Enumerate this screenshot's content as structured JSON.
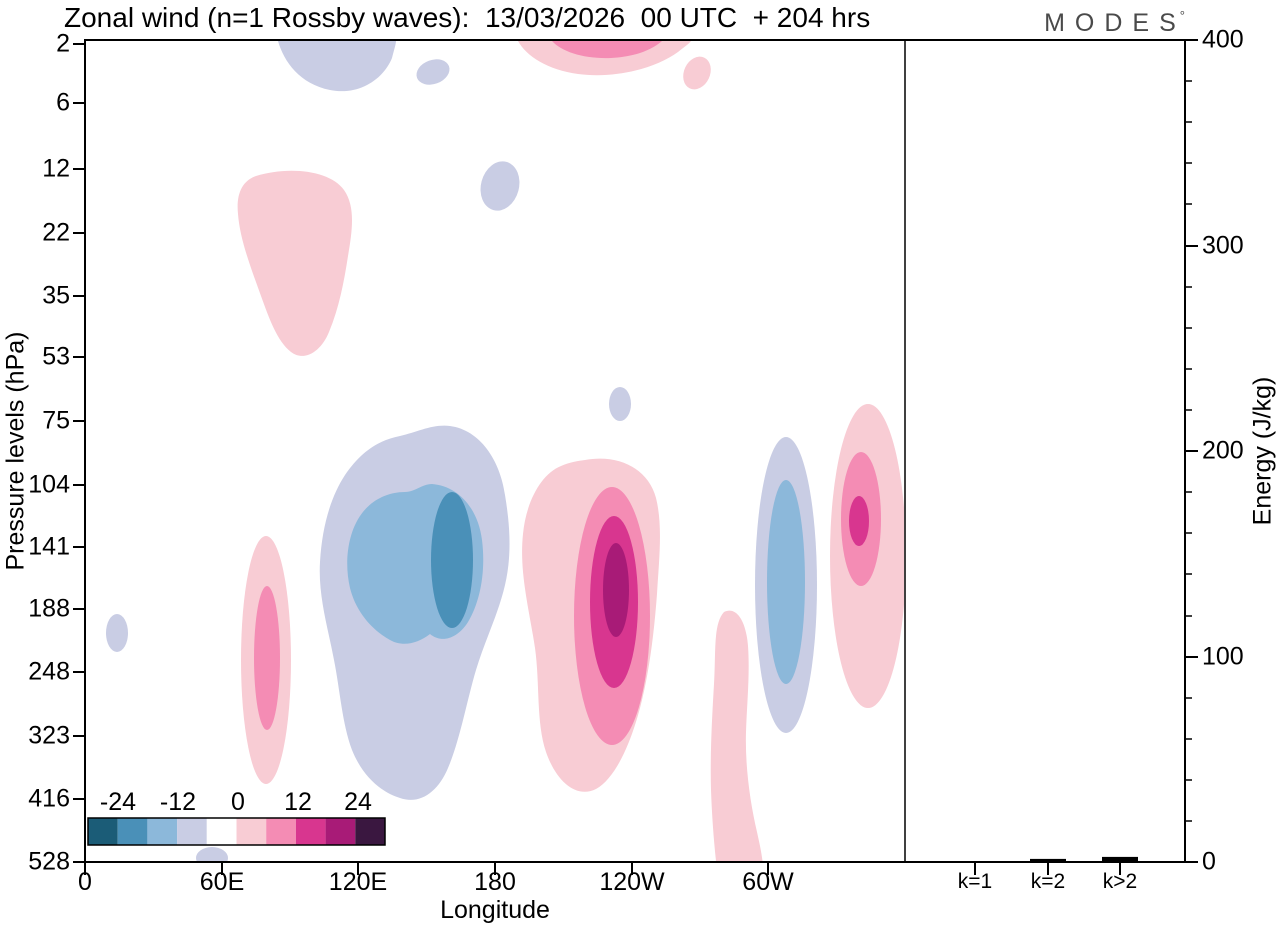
{
  "title": "Zonal wind (n=1 Rossby waves):  13/03/2026  00 UTC  + 204 hrs",
  "brand": {
    "name": "MODES",
    "degree": "°"
  },
  "axes": {
    "pressure": {
      "label": "Pressure levels (hPa)",
      "ticks": [
        "2",
        "6",
        "12",
        "22",
        "35",
        "53",
        "75",
        "104",
        "141",
        "188",
        "248",
        "323",
        "416",
        "528"
      ]
    },
    "longitude": {
      "label": "Longitude",
      "ticks": [
        "0",
        "60E",
        "120E",
        "180",
        "120W",
        "60W"
      ]
    },
    "energy": {
      "label": "Energy (J/kg)",
      "ticks": [
        "400",
        "300",
        "200",
        "100",
        "0"
      ]
    },
    "wavenumber": {
      "ticks": [
        "k=1",
        "k=2",
        "k>2"
      ]
    }
  },
  "colorbar": {
    "tick_labels": [
      "-24",
      "-12",
      "0",
      "12",
      "24"
    ],
    "levels": [
      -30,
      -24,
      -18,
      -12,
      -6,
      0,
      6,
      12,
      18,
      24,
      30
    ],
    "colors": [
      "#1b5c77",
      "#4a90b8",
      "#8cb8da",
      "#c9cde4",
      "#ffffff",
      "#f8ccd4",
      "#f48cb4",
      "#d8368f",
      "#a81b77",
      "#3a1740"
    ]
  },
  "chart_data": [
    {
      "type": "heatmap",
      "subtype": "filled-contour",
      "title": "Zonal wind (n=1 Rossby waves)",
      "valid_time": "13/03/2026 00 UTC",
      "forecast_lead": "+ 204 hrs",
      "xlabel": "Longitude",
      "ylabel": "Pressure levels (hPa)",
      "x_ticks": [
        "0",
        "60E",
        "120E",
        "180",
        "120W",
        "60W"
      ],
      "x_range_deg": [
        0,
        360
      ],
      "y_ticks_hPa": [
        2,
        6,
        12,
        22,
        35,
        53,
        75,
        104,
        141,
        188,
        248,
        323,
        416,
        528
      ],
      "contour_levels": [
        -30,
        -24,
        -18,
        -12,
        -6,
        0,
        6,
        12,
        18,
        24,
        30
      ],
      "features": [
        {
          "sign": "negative",
          "lon": "145E",
          "pressure_hPa": 140,
          "peak_value": -20,
          "extent": "75-400 hPa, 100E-170E, strongest negative cell"
        },
        {
          "sign": "negative",
          "lon": "55W",
          "pressure_hPa": 165,
          "peak_value": -14,
          "extent": "90-320 hPa vertical band"
        },
        {
          "sign": "negative",
          "lon": "95E",
          "pressure_hPa": 2,
          "peak_value": -8,
          "extent": "touching top of domain"
        },
        {
          "sign": "negative",
          "lon": "180",
          "pressure_hPa": 14,
          "peak_value": -8,
          "extent": "small patch"
        },
        {
          "sign": "negative",
          "lon": "167E",
          "pressure_hPa": 80,
          "peak_value": -7,
          "extent": "tiny patch"
        },
        {
          "sign": "positive",
          "lon": "128W",
          "pressure_hPa": 165,
          "peak_value": 22,
          "extent": "90-380 hPa, strongest positive cell"
        },
        {
          "sign": "positive",
          "lon": "17W",
          "pressure_hPa": 120,
          "peak_value": 16,
          "extent": "80-300 hPa"
        },
        {
          "sign": "positive",
          "lon": "80E",
          "pressure_hPa": 250,
          "peak_value": 10,
          "extent": "130-380 hPa narrow column"
        },
        {
          "sign": "positive",
          "lon": "95E",
          "pressure_hPa": 30,
          "peak_value": 5,
          "extent": "12-53 hPa stratospheric patch"
        },
        {
          "sign": "positive",
          "lon": "125W",
          "pressure_hPa": 2,
          "peak_value": 9,
          "extent": "touching top of domain"
        },
        {
          "sign": "positive",
          "lon": "85W",
          "pressure_hPa": 430,
          "peak_value": 5,
          "extent": "190-528 hPa narrow column"
        }
      ]
    },
    {
      "type": "bar",
      "categories": [
        "k=1",
        "k=2",
        "k>2"
      ],
      "values": [
        0.3,
        1.5,
        2.5
      ],
      "ylabel": "Energy (J/kg)",
      "ylim": [
        0,
        400
      ],
      "bar_color": "#000000"
    }
  ]
}
